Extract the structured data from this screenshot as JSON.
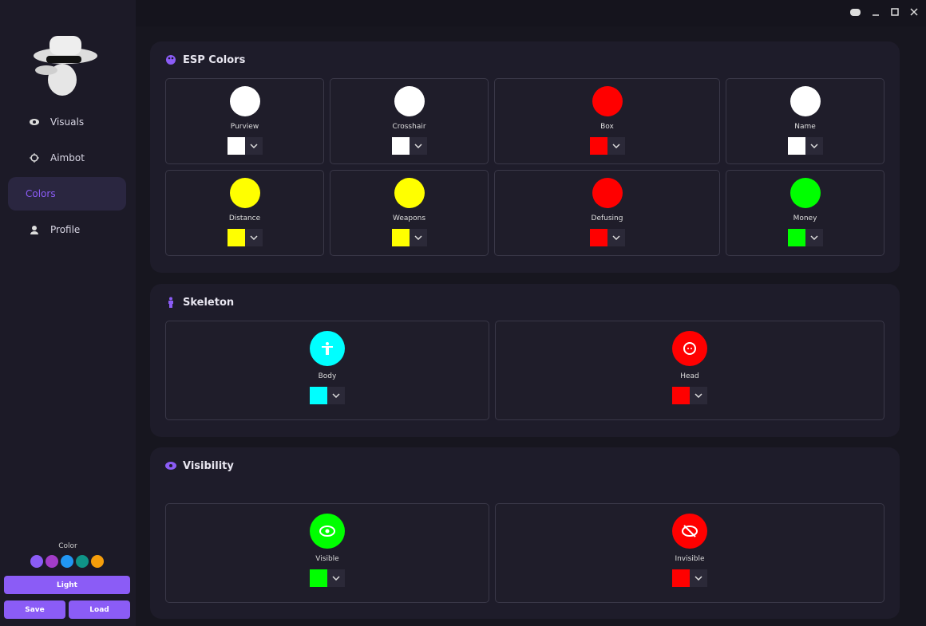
{
  "sidebar": {
    "nav": [
      "Visuals",
      "Aimbot",
      "Colors",
      "Profile"
    ],
    "color_label": "Color",
    "theme_colors": [
      "#8b5cf6",
      "#a23cc8",
      "#2196f3",
      "#0f9488",
      "#f59e0b"
    ],
    "buttons": {
      "light": "Light",
      "save": "Save",
      "load": "Load"
    }
  },
  "sections": [
    {
      "title": "ESP Colors",
      "items": [
        {
          "label": "Purview",
          "color": "#ffffff"
        },
        {
          "label": "Crosshair",
          "color": "#ffffff"
        },
        {
          "label": "Box",
          "color": "#ff0000"
        },
        {
          "label": "Name",
          "color": "#ffffff"
        },
        {
          "label": "Distance",
          "color": "#ffff00"
        },
        {
          "label": "Weapons",
          "color": "#ffff00"
        },
        {
          "label": "Defusing",
          "color": "#ff0000"
        },
        {
          "label": "Money",
          "color": "#00ff00"
        }
      ]
    },
    {
      "title": "Skeleton",
      "items": [
        {
          "label": "Body",
          "color": "#00ffff"
        },
        {
          "label": "Head",
          "color": "#ff0000"
        }
      ]
    },
    {
      "title": "Visibility",
      "items": [
        {
          "label": "Visible",
          "color": "#00ff00"
        },
        {
          "label": "Invisible",
          "color": "#ff0000"
        }
      ]
    }
  ]
}
